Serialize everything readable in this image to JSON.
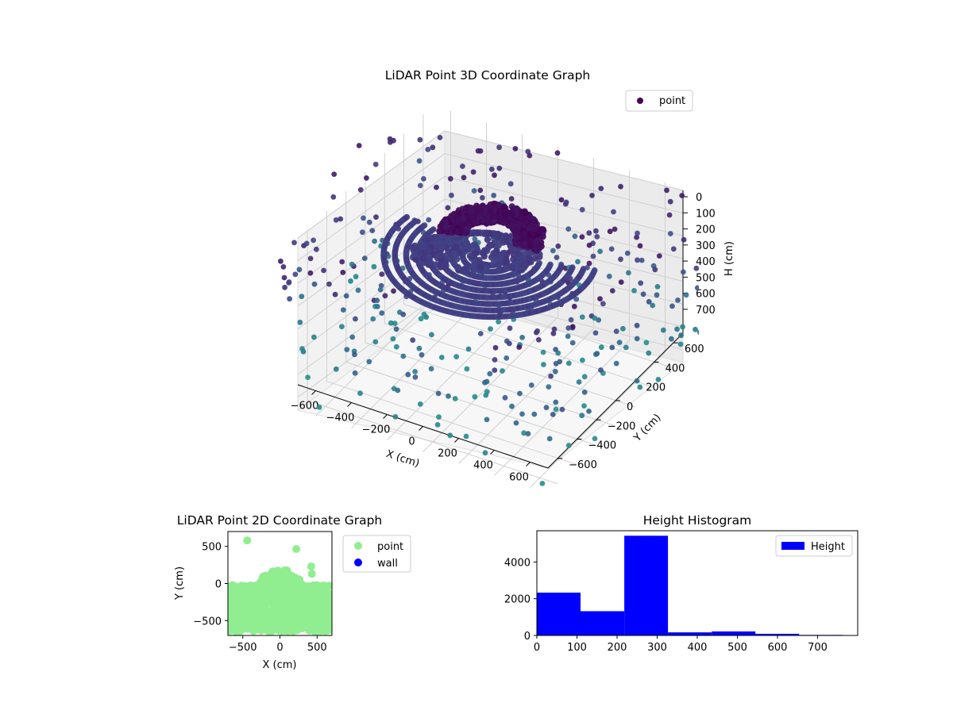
{
  "chart_data": [
    {
      "type": "scatter3d",
      "title": "LiDAR Point 3D Coordinate Graph",
      "xlabel": "X (cm)",
      "ylabel": "Y (cm)",
      "zlabel": "H (cm)",
      "xlim": [
        -700,
        700
      ],
      "ylim": [
        -700,
        700
      ],
      "zlim": [
        0,
        750
      ],
      "z_inverted": true,
      "xticks": [
        -600,
        -400,
        -200,
        0,
        200,
        400,
        600
      ],
      "yticks": [
        -600,
        -400,
        -200,
        0,
        200,
        400,
        600
      ],
      "zticks": [
        0,
        100,
        200,
        300,
        400,
        500,
        600,
        700
      ],
      "colormap": "viridis",
      "legend": {
        "placement": "top-right",
        "entries": [
          {
            "label": "point",
            "color": "#440154"
          }
        ]
      },
      "grid": true,
      "clusters": [
        {
          "name": "scattered room points",
          "x_range": [
            -700,
            700
          ],
          "y_range": [
            -700,
            700
          ],
          "height_range": [
            200,
            750
          ],
          "approx_count": 420
        },
        {
          "name": "central concentric rings",
          "x_center": 0,
          "y_center": 0,
          "radius_range": [
            80,
            520
          ],
          "height": 300,
          "approx_count": 5400
        },
        {
          "name": "upper canopy",
          "x_center": 20,
          "y_center": 150,
          "height_range": [
            90,
            260
          ],
          "approx_count": 1300
        }
      ]
    },
    {
      "type": "scatter",
      "title": "LiDAR Point 2D Coordinate Graph",
      "xlabel": "X (cm)",
      "ylabel": "Y (cm)",
      "xlim": [
        -700,
        700
      ],
      "ylim": [
        -700,
        700
      ],
      "xticks": [
        -500,
        0,
        500
      ],
      "yticks": [
        -500,
        0,
        500
      ],
      "legend": {
        "placement": "outside-right",
        "entries": [
          {
            "label": "point",
            "color": "#90ee90"
          },
          {
            "label": "wall",
            "color": "#0000ff"
          }
        ]
      },
      "outliers": [
        {
          "x": -440,
          "y": 580
        },
        {
          "x": 220,
          "y": 465
        },
        {
          "x": 420,
          "y": 230
        },
        {
          "x": 430,
          "y": 130
        }
      ],
      "dense_region": {
        "x_range": [
          -700,
          700
        ],
        "y_range": [
          -650,
          250
        ]
      }
    },
    {
      "type": "bar",
      "title": "Height Histogram",
      "xlabel": "",
      "ylabel": "",
      "xlim": [
        0,
        800
      ],
      "ylim": [
        0,
        5700
      ],
      "xticks": [
        0,
        100,
        200,
        300,
        400,
        500,
        600,
        700
      ],
      "yticks": [
        0,
        2000,
        4000
      ],
      "legend": {
        "placement": "top-right",
        "entries": [
          {
            "label": "Height",
            "color": "#0000ff"
          }
        ]
      },
      "bin_edges": [
        0,
        109,
        218,
        327,
        436,
        545,
        654,
        763,
        872
      ],
      "values": [
        2330,
        1320,
        5430,
        170,
        220,
        90,
        30,
        10
      ]
    }
  ]
}
